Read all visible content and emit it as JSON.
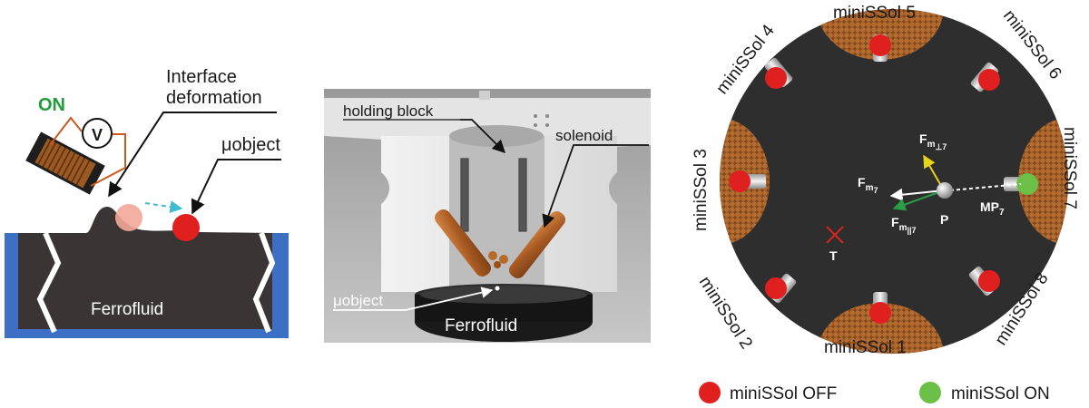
{
  "panel_a": {
    "on_label": "ON",
    "voltmeter_label": "V",
    "interface_label_line1": "Interface",
    "interface_label_line2": "deformation",
    "object_label": "μobject",
    "fluid_label": "Ferrofluid",
    "colors": {
      "fluid": "#3a3534",
      "container": "#3d6fc4",
      "on_text": "#1f9d3a",
      "object_red": "#e0201e",
      "arrow_dash": "#3fbcd0"
    }
  },
  "panel_b": {
    "holding_block_label": "holding block",
    "solenoid_label": "solenoid",
    "object_label": "μobject",
    "fluid_label": "Ferrofluid"
  },
  "panel_c": {
    "solenoid_labels": [
      "miniSSol 1",
      "miniSSol 2",
      "miniSSol 3",
      "miniSSol 4",
      "miniSSol 5",
      "miniSSol 6",
      "miniSSol 7",
      "miniSSol 8"
    ],
    "force_labels": {
      "fm_perp": {
        "base": "F",
        "sub": "m",
        "subsub": "⊥7"
      },
      "fm": {
        "base": "F",
        "sub": "m",
        "subsub": "7"
      },
      "fm_par": {
        "base": "F",
        "sub": "m",
        "subsub": "||7"
      }
    },
    "mp_label": {
      "base": "MP",
      "sub": "7"
    },
    "p_label": "P",
    "t_label": "T",
    "legend": [
      {
        "label": "miniSSol OFF",
        "color": "#e0201e"
      },
      {
        "label": "miniSSol ON",
        "color": "#6cbf47"
      }
    ],
    "colors": {
      "disk": "#2e2e2e",
      "coil": "#b5651d",
      "perp_arrow": "#e8d21a",
      "par_arrow": "#2a9d46",
      "target": "#d9261c"
    }
  }
}
